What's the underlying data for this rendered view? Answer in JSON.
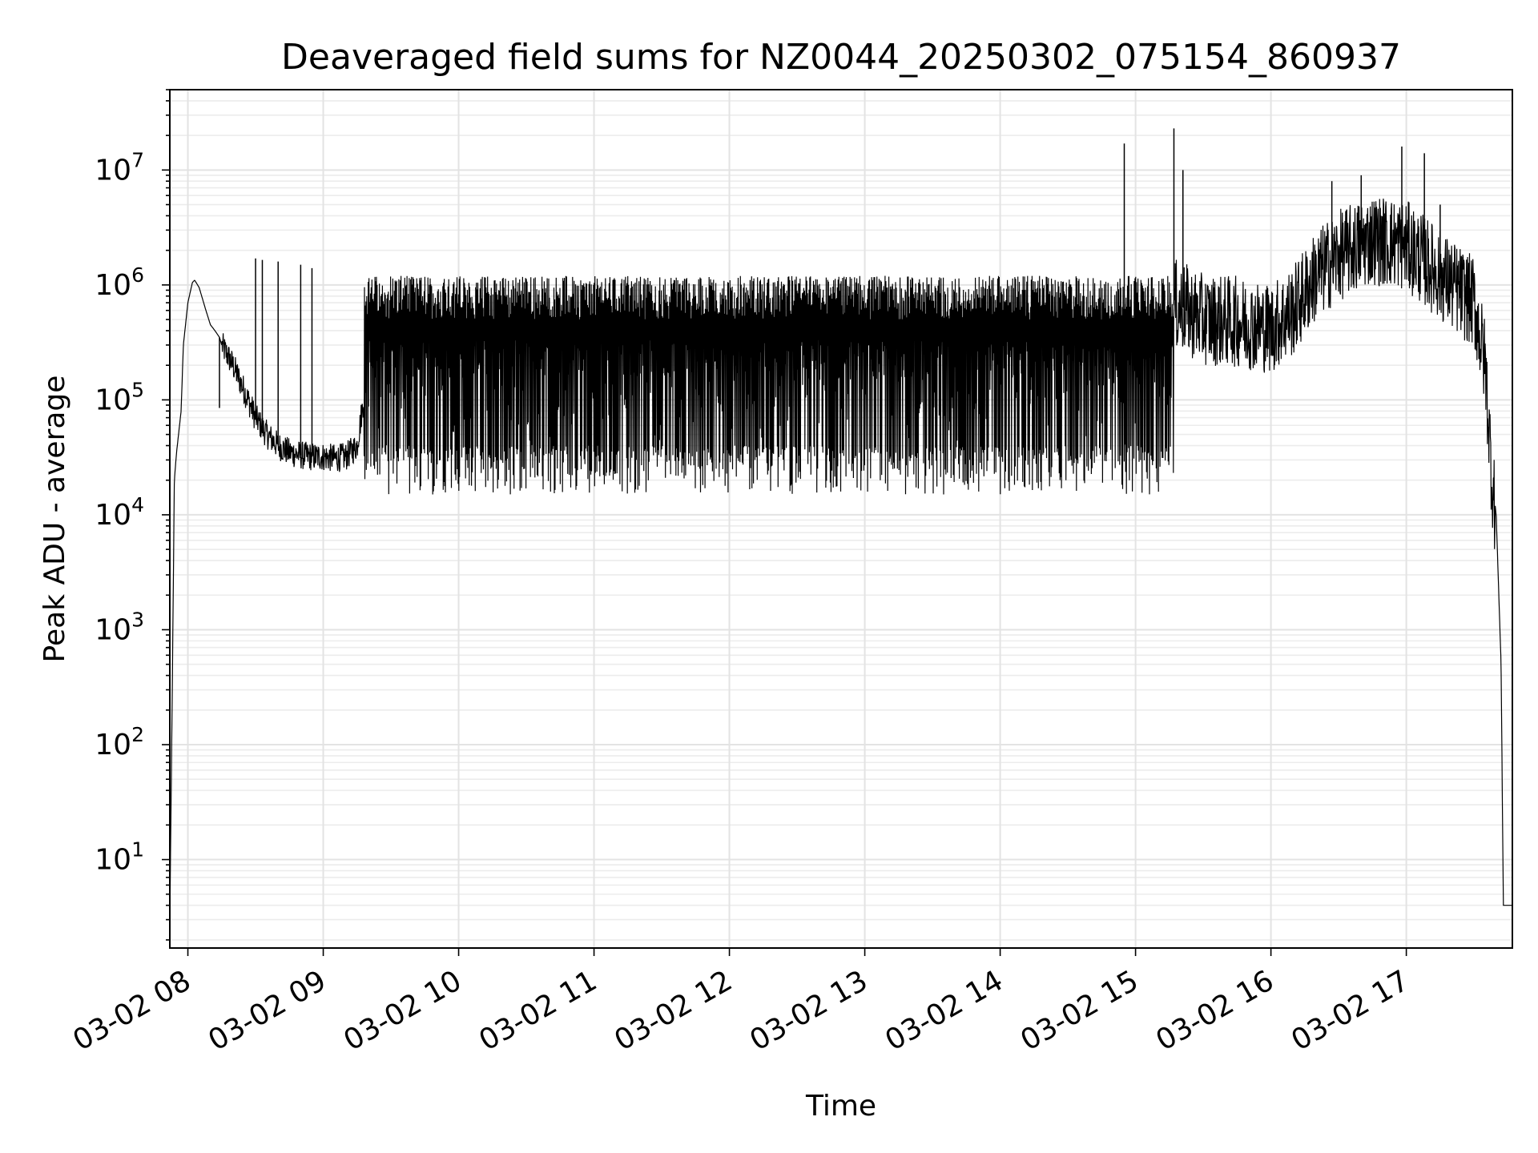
{
  "chart_data": {
    "type": "line",
    "title": "Deaveraged field sums for NZ0044_20250302_075154_860937",
    "xlabel": "Time",
    "ylabel": "Peak ADU - average",
    "yscale": "log",
    "xlim": [
      "2025-03-02 07:52",
      "2025-03-02 17:47"
    ],
    "ylim": [
      1.7,
      50000000
    ],
    "grid": true,
    "legend": "none",
    "line_color": "#000000",
    "x_tick_labels": [
      "03-02 08",
      "03-02 09",
      "03-02 10",
      "03-02 11",
      "03-02 12",
      "03-02 13",
      "03-02 14",
      "03-02 15",
      "03-02 16",
      "03-02 17"
    ],
    "y_tick_labels": [
      {
        "base": "10",
        "exp": "1"
      },
      {
        "base": "10",
        "exp": "2"
      },
      {
        "base": "10",
        "exp": "3"
      },
      {
        "base": "10",
        "exp": "4"
      },
      {
        "base": "10",
        "exp": "5"
      },
      {
        "base": "10",
        "exp": "6"
      },
      {
        "base": "10",
        "exp": "7"
      }
    ],
    "series": [
      {
        "x": [
          "2025-03-02 07:52",
          "2025-03-02 07:53",
          "2025-03-02 07:54",
          "2025-03-02 07:55",
          "2025-03-02 07:57",
          "2025-03-02 07:58",
          "2025-03-02 08:00",
          "2025-03-02 08:02",
          "2025-03-02 08:03",
          "2025-03-02 08:05",
          "2025-03-02 08:08",
          "2025-03-02 08:10",
          "2025-03-02 08:12",
          "2025-03-02 08:14",
          "2025-03-02 08:15",
          "2025-03-02 08:20",
          "2025-03-02 08:25",
          "2025-03-02 08:30",
          "2025-03-02 08:35",
          "2025-03-02 08:40",
          "2025-03-02 08:45",
          "2025-03-02 08:50",
          "2025-03-02 08:55",
          "2025-03-02 09:00",
          "2025-03-02 09:05",
          "2025-03-02 09:10",
          "2025-03-02 09:15",
          "2025-03-02 09:20",
          "2025-03-02 09:30",
          "2025-03-02 09:40",
          "2025-03-02 10:00",
          "2025-03-02 10:30",
          "2025-03-02 11:00",
          "2025-03-02 11:30",
          "2025-03-02 12:00",
          "2025-03-02 12:30",
          "2025-03-02 13:00",
          "2025-03-02 13:30",
          "2025-03-02 14:00",
          "2025-03-02 14:30",
          "2025-03-02 14:50",
          "2025-03-02 15:00",
          "2025-03-02 15:10",
          "2025-03-02 15:20",
          "2025-03-02 15:30",
          "2025-03-02 15:45",
          "2025-03-02 16:00",
          "2025-03-02 16:10",
          "2025-03-02 16:20",
          "2025-03-02 16:30",
          "2025-03-02 16:45",
          "2025-03-02 17:00",
          "2025-03-02 17:10",
          "2025-03-02 17:20",
          "2025-03-02 17:30",
          "2025-03-02 17:35",
          "2025-03-02 17:38",
          "2025-03-02 17:40",
          "2025-03-02 17:42",
          "2025-03-02 17:43",
          "2025-03-02 17:44",
          "2025-03-02 17:47"
        ],
        "values": [
          3,
          200,
          20000,
          35000,
          80000,
          300000,
          700000,
          1050000,
          1100000,
          950000,
          600000,
          450000,
          400000,
          350000,
          300000,
          200000,
          120000,
          70000,
          50000,
          40000,
          35000,
          33000,
          32000,
          32000,
          31000,
          32000,
          40000,
          200000,
          450000,
          500000,
          480000,
          450000,
          380000,
          380000,
          350000,
          320000,
          280000,
          290000,
          280000,
          300000,
          400000,
          600000,
          700000,
          650000,
          500000,
          480000,
          420000,
          600000,
          1200000,
          1800000,
          2500000,
          2200000,
          1500000,
          1000000,
          700000,
          200000,
          20000,
          8000,
          500,
          4,
          4,
          4
        ]
      }
    ],
    "spikes": [
      {
        "x": "2025-03-02 08:14",
        "value": 85000
      },
      {
        "x": "2025-03-02 08:30",
        "value": 1700000
      },
      {
        "x": "2025-03-02 08:33",
        "value": 1650000
      },
      {
        "x": "2025-03-02 08:40",
        "value": 1600000
      },
      {
        "x": "2025-03-02 08:50",
        "value": 1500000
      },
      {
        "x": "2025-03-02 08:55",
        "value": 1400000
      },
      {
        "x": "2025-03-02 14:55",
        "value": 17000000
      },
      {
        "x": "2025-03-02 15:17",
        "value": 23000000
      },
      {
        "x": "2025-03-02 15:21",
        "value": 10000000
      },
      {
        "x": "2025-03-02 16:27",
        "value": 8000000
      },
      {
        "x": "2025-03-02 16:40",
        "value": 9000000
      },
      {
        "x": "2025-03-02 16:58",
        "value": 16000000
      },
      {
        "x": "2025-03-02 17:08",
        "value": 14000000
      },
      {
        "x": "2025-03-02 17:15",
        "value": 5000000
      }
    ]
  }
}
